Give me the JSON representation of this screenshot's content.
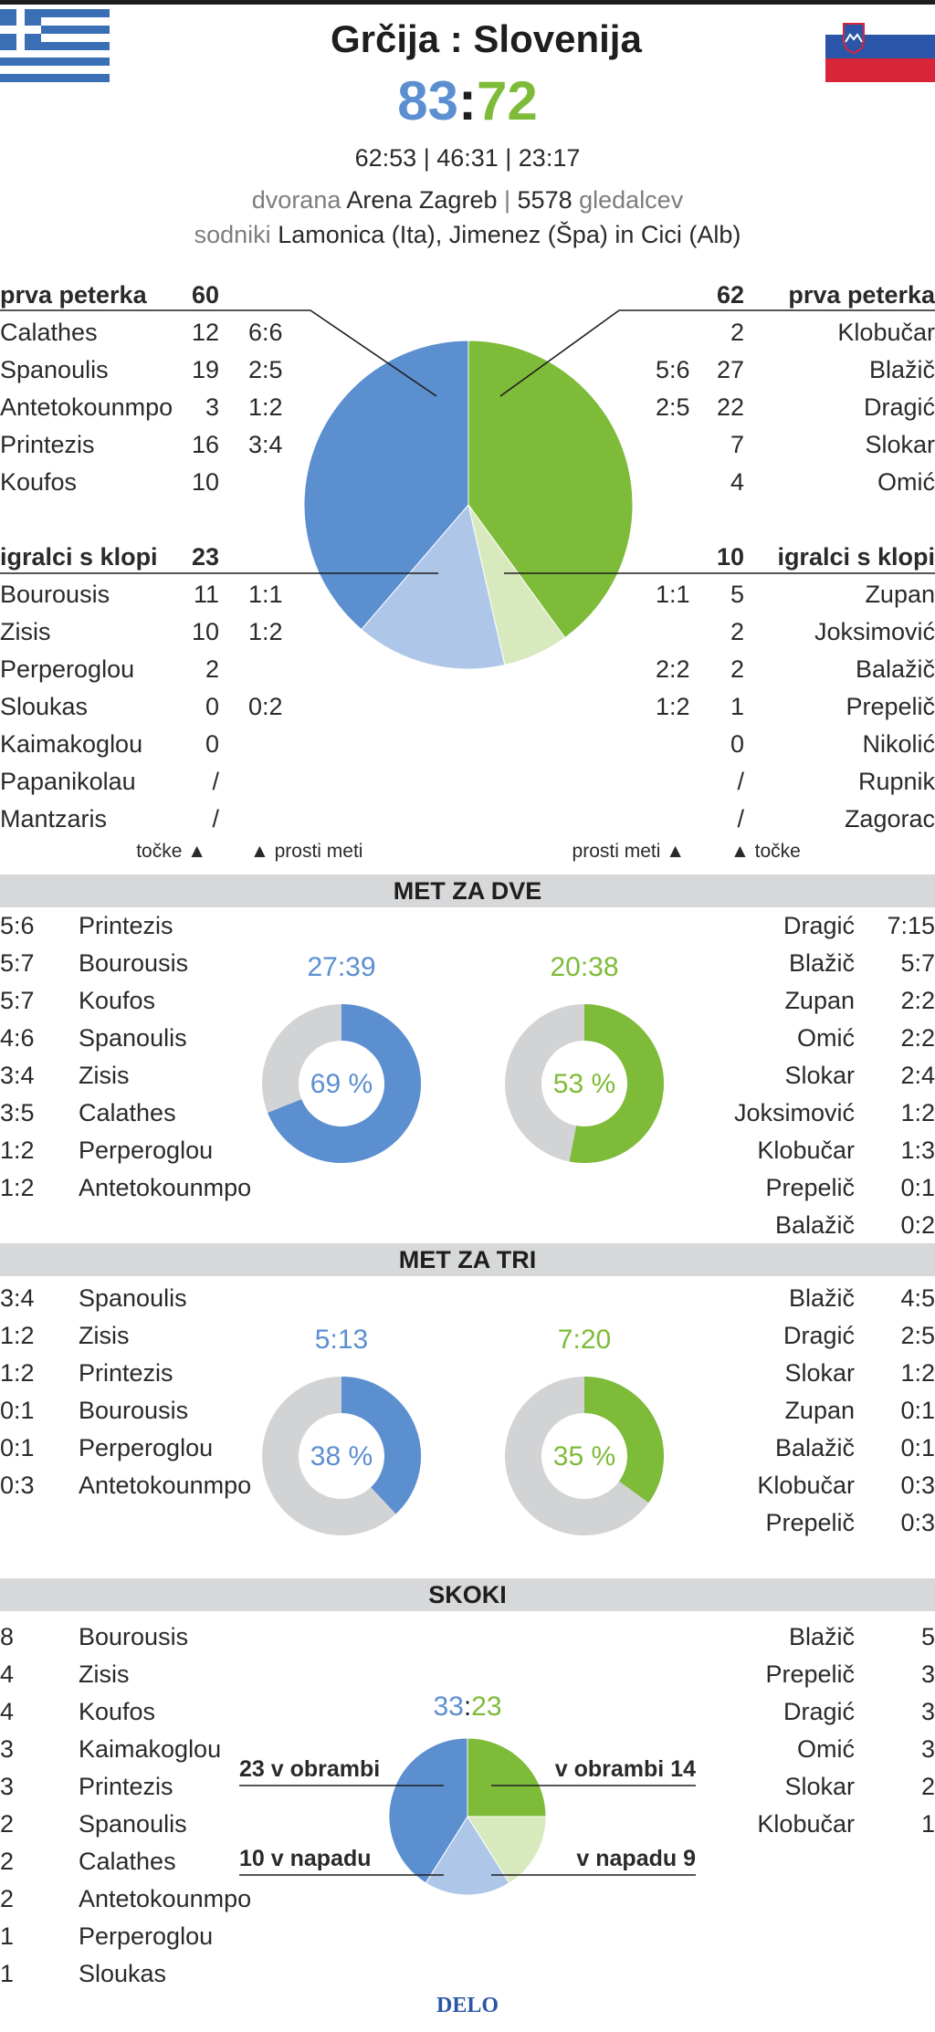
{
  "header": {
    "title": "Grčija : Slovenija",
    "score_home": "83",
    "score_sep": ":",
    "score_away": "72",
    "quarters": "62:53 |  46:31 | 23:17",
    "venue_prefix": "dvorana",
    "venue_name": "Arena Zagreb",
    "venue_sep": "|",
    "attendance_number": "5578",
    "attendance_word": "gledalcev",
    "referees_prefix": "sodniki",
    "referees": "Lamonica (Ita), Jimenez (Špa) in Cici (Alb)"
  },
  "flags": {
    "home": "greece-flag",
    "away": "slovenia-flag"
  },
  "colors": {
    "home": "#5b8fd0",
    "home_light": "#aec6e8",
    "away": "#7dbb38",
    "away_light": "#d7e9bd",
    "ring_bg": "#d2d3d4"
  },
  "points": {
    "home": {
      "starters_label": "prva peterka",
      "starters_total": "60",
      "starters": [
        {
          "name": "Calathes",
          "pts": "12",
          "ft": "6:6"
        },
        {
          "name": "Spanoulis",
          "pts": "19",
          "ft": "2:5"
        },
        {
          "name": "Antetokounmpo",
          "pts": "3",
          "ft": "1:2"
        },
        {
          "name": "Printezis",
          "pts": "16",
          "ft": "3:4"
        },
        {
          "name": "Koufos",
          "pts": "10",
          "ft": ""
        }
      ],
      "bench_label": "igralci s klopi",
      "bench_total": "23",
      "bench": [
        {
          "name": "Bourousis",
          "pts": "11",
          "ft": "1:1"
        },
        {
          "name": "Zisis",
          "pts": "10",
          "ft": "1:2"
        },
        {
          "name": "Perperoglou",
          "pts": "2",
          "ft": ""
        },
        {
          "name": "Sloukas",
          "pts": "0",
          "ft": "0:2"
        },
        {
          "name": "Kaimakoglou",
          "pts": "0",
          "ft": ""
        },
        {
          "name": "Papanikolau",
          "pts": "/",
          "ft": ""
        },
        {
          "name": "Mantzaris",
          "pts": "/",
          "ft": ""
        }
      ],
      "legend_points": "točke ▲",
      "legend_ft": "▲  prosti meti"
    },
    "away": {
      "starters_label": "prva peterka",
      "starters_total": "62",
      "starters": [
        {
          "name": "Klobučar",
          "pts": "2",
          "ft": ""
        },
        {
          "name": "Blažič",
          "pts": "27",
          "ft": "5:6"
        },
        {
          "name": "Dragić",
          "pts": "22",
          "ft": "2:5"
        },
        {
          "name": "Slokar",
          "pts": "7",
          "ft": ""
        },
        {
          "name": "Omić",
          "pts": "4",
          "ft": ""
        }
      ],
      "bench_label": "igralci s klopi",
      "bench_total": "10",
      "bench": [
        {
          "name": "Zupan",
          "pts": "5",
          "ft": "1:1"
        },
        {
          "name": "Joksimović",
          "pts": "2",
          "ft": ""
        },
        {
          "name": "Balažič",
          "pts": "2",
          "ft": "2:2"
        },
        {
          "name": "Prepelič",
          "pts": "1",
          "ft": "1:2"
        },
        {
          "name": "Nikolić",
          "pts": "0",
          "ft": ""
        },
        {
          "name": "Rupnik",
          "pts": "/",
          "ft": ""
        },
        {
          "name": "Zagorac",
          "pts": "/",
          "ft": ""
        }
      ],
      "legend_ft": "prosti meti  ▲",
      "legend_points": "▲  točke"
    }
  },
  "two_pt": {
    "title": "MET ZA DVE",
    "home": {
      "total": "27:39",
      "pct_label": "69 %",
      "pct": 69
    },
    "away": {
      "total": "20:38",
      "pct_label": "53 %",
      "pct": 53
    },
    "home_players": [
      {
        "stat": "5:6",
        "name": "Printezis"
      },
      {
        "stat": "5:7",
        "name": "Bourousis"
      },
      {
        "stat": "5:7",
        "name": "Koufos"
      },
      {
        "stat": "4:6",
        "name": "Spanoulis"
      },
      {
        "stat": "3:4",
        "name": "Zisis"
      },
      {
        "stat": "3:5",
        "name": "Calathes"
      },
      {
        "stat": "1:2",
        "name": "Perperoglou"
      },
      {
        "stat": "1:2",
        "name": "Antetokounmpo"
      }
    ],
    "away_players": [
      {
        "name": "Dragić",
        "stat": "7:15"
      },
      {
        "name": "Blažič",
        "stat": "5:7"
      },
      {
        "name": "Zupan",
        "stat": "2:2"
      },
      {
        "name": "Omić",
        "stat": "2:2"
      },
      {
        "name": "Slokar",
        "stat": "2:4"
      },
      {
        "name": "Joksimović",
        "stat": "1:2"
      },
      {
        "name": "Klobučar",
        "stat": "1:3"
      },
      {
        "name": "Prepelič",
        "stat": "0:1"
      },
      {
        "name": "Balažič",
        "stat": "0:2"
      }
    ]
  },
  "three_pt": {
    "title": "MET ZA TRI",
    "home": {
      "total": "5:13",
      "pct_label": "38 %",
      "pct": 38
    },
    "away": {
      "total": "7:20",
      "pct_label": "35 %",
      "pct": 35
    },
    "home_players": [
      {
        "stat": "3:4",
        "name": "Spanoulis"
      },
      {
        "stat": "1:2",
        "name": "Zisis"
      },
      {
        "stat": "1:2",
        "name": "Printezis"
      },
      {
        "stat": "0:1",
        "name": "Bourousis"
      },
      {
        "stat": "0:1",
        "name": "Perperoglou"
      },
      {
        "stat": "0:3",
        "name": "Antetokounmpo"
      }
    ],
    "away_players": [
      {
        "name": "Blažič",
        "stat": "4:5"
      },
      {
        "name": "Dragić",
        "stat": "2:5"
      },
      {
        "name": "Slokar",
        "stat": "1:2"
      },
      {
        "name": "Zupan",
        "stat": "0:1"
      },
      {
        "name": "Balažič",
        "stat": "0:1"
      },
      {
        "name": "Klobučar",
        "stat": "0:3"
      },
      {
        "name": "Prepelič",
        "stat": "0:3"
      }
    ]
  },
  "rebounds": {
    "title": "SKOKI",
    "total_home": "33",
    "total_sep": ":",
    "total_away": "23",
    "home_def_label": "23 v obrambi",
    "home_off_label": "10 v napadu",
    "away_def_label": "v obrambi 14",
    "away_off_label": "v napadu 9",
    "home_players": [
      {
        "stat": "8",
        "name": "Bourousis"
      },
      {
        "stat": "4",
        "name": "Zisis"
      },
      {
        "stat": "4",
        "name": "Koufos"
      },
      {
        "stat": "3",
        "name": "Kaimakoglou"
      },
      {
        "stat": "3",
        "name": "Printezis"
      },
      {
        "stat": "2",
        "name": "Spanoulis"
      },
      {
        "stat": "2",
        "name": "Calathes"
      },
      {
        "stat": "2",
        "name": "Antetokounmpo"
      },
      {
        "stat": "1",
        "name": "Perperoglou"
      },
      {
        "stat": "1",
        "name": "Sloukas"
      }
    ],
    "away_players": [
      {
        "name": "Blažič",
        "stat": "5"
      },
      {
        "name": "Prepelič",
        "stat": "3"
      },
      {
        "name": "Dragić",
        "stat": "3"
      },
      {
        "name": "Omić",
        "stat": "3"
      },
      {
        "name": "Slokar",
        "stat": "2"
      },
      {
        "name": "Klobučar",
        "stat": "1"
      }
    ]
  },
  "footer": {
    "brand": "DELO"
  },
  "chart_data": [
    {
      "type": "pie",
      "series": [
        {
          "name": "prva peterka",
          "values": [
            60,
            62
          ]
        },
        {
          "name": "igralci s klopi",
          "values": [
            23,
            10
          ]
        }
      ],
      "slices": [
        {
          "label": "Slovenija prva peterka",
          "value": 62
        },
        {
          "label": "Slovenija igralci s klopi",
          "value": 10
        },
        {
          "label": "Grčija igralci s klopi",
          "value": 23
        },
        {
          "label": "Grčija prva peterka",
          "value": 60
        }
      ]
    },
    {
      "type": "pie",
      "title": "MET ZA DVE",
      "rings": [
        {
          "label": "27:39",
          "value": 69
        },
        {
          "label": "20:38",
          "value": 53
        }
      ]
    },
    {
      "type": "pie",
      "title": "MET ZA TRI",
      "rings": [
        {
          "label": "5:13",
          "value": 38
        },
        {
          "label": "7:20",
          "value": 35
        }
      ]
    },
    {
      "type": "pie",
      "title": "SKOKI",
      "slices": [
        {
          "label": "v obrambi 14",
          "value": 14
        },
        {
          "label": "v napadu 9",
          "value": 9
        },
        {
          "label": "10 v napadu",
          "value": 10
        },
        {
          "label": "23 v obrambi",
          "value": 23
        }
      ]
    }
  ]
}
